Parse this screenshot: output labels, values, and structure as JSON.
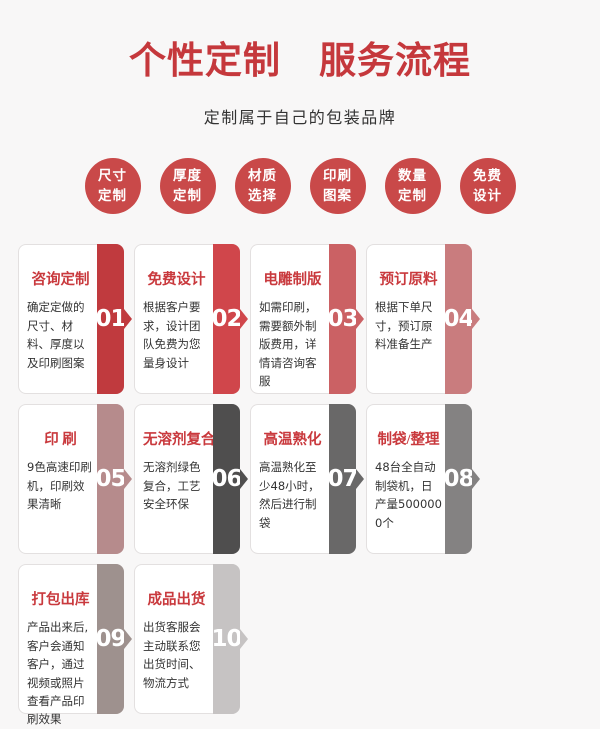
{
  "header": {
    "title": "个性定制　服务流程",
    "subtitle": "定制属于自己的包装品牌"
  },
  "colors": {
    "title_red": "#c5383c",
    "circle_red": "#c94949",
    "card_title_red": "#c9393d",
    "page_bg": "#f8f7f7",
    "body_text": "#333333"
  },
  "feature_circles": [
    {
      "line1": "尺寸",
      "line2": "定制"
    },
    {
      "line1": "厚度",
      "line2": "定制"
    },
    {
      "line1": "材质",
      "line2": "选择"
    },
    {
      "line1": "印刷",
      "line2": "图案"
    },
    {
      "line1": "数量",
      "line2": "定制"
    },
    {
      "line1": "免费",
      "line2": "设计"
    }
  ],
  "steps": [
    {
      "number": "01",
      "title": "咨询定制",
      "body": "确定定做的尺寸、材料、厚度以及印刷图案",
      "bar_color": "#c03a3e"
    },
    {
      "number": "02",
      "title": "免费设计",
      "body": "根据客户要求，设计团队免费为您量身设计",
      "bar_color": "#d0464b"
    },
    {
      "number": "03",
      "title": "电雕制版",
      "body": "如需印刷，需要额外制版费用，详情请咨询客服",
      "bar_color": "#cb6164"
    },
    {
      "number": "04",
      "title": "预订原料",
      "body": "根据下单尺寸，预订原料准备生产",
      "bar_color": "#c97c7e"
    },
    {
      "number": "05",
      "title": "印 刷",
      "body": "9色高速印刷机，印刷效果清晰",
      "bar_color": "#b68b8c"
    },
    {
      "number": "06",
      "title": "无溶剂复合",
      "body": "无溶剂绿色复合，工艺安全环保",
      "bar_color": "#4f4e4e"
    },
    {
      "number": "07",
      "title": "高温熟化",
      "body": "高温熟化至少48小时，然后进行制袋",
      "bar_color": "#696868"
    },
    {
      "number": "08",
      "title": "制袋/整理",
      "body": "48台全自动制袋机，日产量5000000个",
      "bar_color": "#848282"
    },
    {
      "number": "09",
      "title": "打包出库",
      "body": "产品出来后,客户会通知客户，通过视频或照片查看产品印刷效果",
      "bar_color": "#9e918e"
    },
    {
      "number": "10",
      "title": "成品出货",
      "body": "出货客服会主动联系您出货时间、物流方式",
      "bar_color": "#c6c3c3"
    }
  ]
}
